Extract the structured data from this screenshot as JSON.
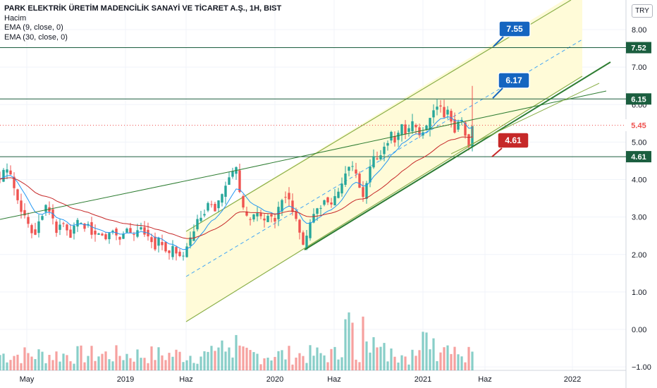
{
  "window": {
    "title": "PARK ELEKTRİK ÜRETİM MADENCİLİK SANAYİ VE TİCARET A.Ş., 1H, BIST",
    "indicators": [
      "Hacim",
      "EMA (9, close, 0)",
      "EMA (30, close, 0)"
    ],
    "currency_button": "TRY"
  },
  "colors": {
    "up": "#26a69a",
    "down": "#ef5350",
    "channel_fill": "#fffbd8",
    "channel_line": "#8bb04a",
    "trend_line": "#2e7d32",
    "horizontal_line": "#1b5e3f",
    "ema9": "#2196f3",
    "ema30": "#c62828",
    "mid_dash": "#42a5f5"
  },
  "chart_data": {
    "type": "candlestick",
    "price_axis": {
      "ticks": [
        -1,
        0,
        1,
        2,
        3,
        4,
        5,
        6,
        7,
        8
      ],
      "tick_labels": [
        "−1.00",
        "0.00",
        "1.00",
        "2.00",
        "3.00",
        "4.00",
        "5.00",
        "6.00",
        "7.00",
        "8.00"
      ],
      "range": [
        -1.1,
        8.5
      ]
    },
    "time_axis": {
      "ticks": [
        "May",
        "2019",
        "Haz",
        "2020",
        "Haz",
        "2021",
        "Haz",
        "2022"
      ]
    },
    "price_labels": [
      {
        "value": 7.52,
        "label": "7.52",
        "style": "level"
      },
      {
        "value": 6.15,
        "label": "6.15",
        "style": "level"
      },
      {
        "value": 5.45,
        "label": "5.45",
        "style": "last"
      },
      {
        "value": 4.61,
        "label": "4.61",
        "style": "level"
      }
    ],
    "horizontal_levels": [
      7.52,
      6.15,
      4.61
    ],
    "last_price": 5.45,
    "callouts": [
      {
        "label": "7.55",
        "value": 7.55,
        "color": "blue"
      },
      {
        "label": "6.17",
        "value": 6.17,
        "color": "blue"
      },
      {
        "label": "4.61",
        "value": 4.61,
        "color": "red"
      }
    ],
    "price_path": [
      [
        0,
        4.0
      ],
      [
        5,
        4.2
      ],
      [
        10,
        4.3
      ],
      [
        15,
        4.1
      ],
      [
        20,
        3.8
      ],
      [
        25,
        3.5
      ],
      [
        30,
        3.2
      ],
      [
        35,
        3.0
      ],
      [
        40,
        2.8
      ],
      [
        45,
        2.6
      ],
      [
        50,
        2.6
      ],
      [
        55,
        2.9
      ],
      [
        60,
        3.1
      ],
      [
        65,
        3.3
      ],
      [
        70,
        3.2
      ],
      [
        75,
        2.9
      ],
      [
        80,
        2.6
      ],
      [
        85,
        2.8
      ],
      [
        90,
        2.8
      ],
      [
        95,
        2.6
      ],
      [
        100,
        2.5
      ],
      [
        105,
        2.7
      ],
      [
        110,
        2.9
      ],
      [
        115,
        2.8
      ],
      [
        120,
        2.7
      ],
      [
        125,
        2.8
      ],
      [
        130,
        2.6
      ],
      [
        135,
        2.5
      ],
      [
        140,
        2.6
      ],
      [
        145,
        2.5
      ],
      [
        150,
        2.4
      ],
      [
        155,
        2.6
      ],
      [
        160,
        2.7
      ],
      [
        165,
        2.5
      ],
      [
        170,
        2.4
      ],
      [
        175,
        2.6
      ],
      [
        180,
        2.7
      ],
      [
        185,
        2.6
      ],
      [
        190,
        2.5
      ],
      [
        195,
        2.6
      ],
      [
        200,
        2.7
      ],
      [
        205,
        2.6
      ],
      [
        210,
        2.5
      ],
      [
        215,
        2.4
      ],
      [
        220,
        2.2
      ],
      [
        225,
        2.4
      ],
      [
        230,
        2.3
      ],
      [
        235,
        2.1
      ],
      [
        240,
        2.0
      ],
      [
        245,
        2.2
      ],
      [
        250,
        2.0
      ],
      [
        255,
        1.9
      ],
      [
        260,
        2.0
      ],
      [
        265,
        2.2
      ],
      [
        270,
        2.4
      ],
      [
        275,
        2.6
      ],
      [
        280,
        2.9
      ],
      [
        285,
        3.0
      ],
      [
        290,
        3.1
      ],
      [
        295,
        3.3
      ],
      [
        300,
        3.4
      ],
      [
        305,
        3.2
      ],
      [
        310,
        3.4
      ],
      [
        315,
        3.6
      ],
      [
        320,
        3.8
      ],
      [
        325,
        4.0
      ],
      [
        330,
        4.2
      ],
      [
        335,
        4.3
      ],
      [
        340,
        3.6
      ],
      [
        345,
        3.2
      ],
      [
        350,
        3.0
      ],
      [
        355,
        2.9
      ],
      [
        360,
        3.0
      ],
      [
        365,
        3.1
      ],
      [
        370,
        3.0
      ],
      [
        375,
        2.9
      ],
      [
        380,
        3.0
      ],
      [
        385,
        3.0
      ],
      [
        390,
        2.9
      ],
      [
        395,
        3.2
      ],
      [
        400,
        3.5
      ],
      [
        405,
        3.6
      ],
      [
        410,
        3.4
      ],
      [
        415,
        3.2
      ],
      [
        420,
        3.0
      ],
      [
        425,
        2.6
      ],
      [
        430,
        2.2
      ],
      [
        435,
        2.5
      ],
      [
        440,
        2.8
      ],
      [
        445,
        3.1
      ],
      [
        450,
        3.2
      ],
      [
        455,
        3.3
      ],
      [
        460,
        3.5
      ],
      [
        465,
        3.4
      ],
      [
        470,
        3.3
      ],
      [
        475,
        3.5
      ],
      [
        480,
        3.7
      ],
      [
        485,
        3.9
      ],
      [
        490,
        4.2
      ],
      [
        495,
        4.4
      ],
      [
        500,
        4.3
      ],
      [
        505,
        4.1
      ],
      [
        510,
        3.8
      ],
      [
        515,
        3.5
      ],
      [
        520,
        3.9
      ],
      [
        525,
        4.3
      ],
      [
        530,
        4.6
      ],
      [
        535,
        4.5
      ],
      [
        540,
        4.7
      ],
      [
        545,
        4.9
      ],
      [
        550,
        5.0
      ],
      [
        555,
        5.2
      ],
      [
        560,
        5.0
      ],
      [
        565,
        5.2
      ],
      [
        570,
        5.4
      ],
      [
        575,
        5.2
      ],
      [
        580,
        5.3
      ],
      [
        585,
        5.5
      ],
      [
        590,
        5.4
      ],
      [
        595,
        5.2
      ],
      [
        600,
        5.3
      ],
      [
        605,
        5.4
      ],
      [
        610,
        5.6
      ],
      [
        615,
        5.8
      ],
      [
        620,
        6.0
      ],
      [
        625,
        5.9
      ],
      [
        630,
        5.7
      ],
      [
        635,
        5.9
      ],
      [
        640,
        5.6
      ],
      [
        645,
        5.3
      ],
      [
        650,
        5.5
      ],
      [
        655,
        5.6
      ],
      [
        660,
        5.2
      ],
      [
        665,
        4.9
      ],
      [
        670,
        5.45
      ]
    ],
    "volume_range": [
      0,
      1.5
    ],
    "ema": [
      {
        "period": 9,
        "color": "ema9"
      },
      {
        "period": 30,
        "color": "ema30"
      }
    ]
  }
}
